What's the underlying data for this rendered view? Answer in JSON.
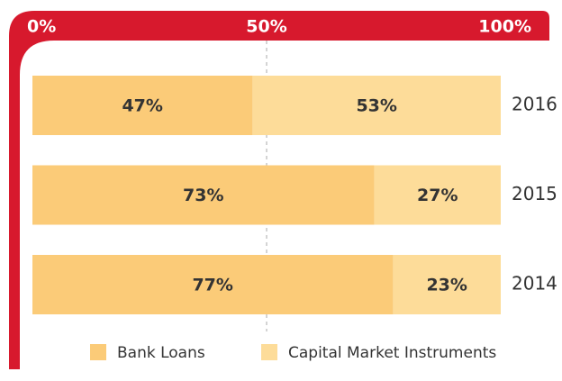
{
  "chart_data": {
    "type": "stacked-bar-horizontal",
    "categories": [
      "2016",
      "2015",
      "2014"
    ],
    "series": [
      {
        "name": "Bank Loans",
        "color": "#fbcb78",
        "values": [
          47,
          73,
          77
        ],
        "value_labels": [
          "47%",
          "73%",
          "77%"
        ]
      },
      {
        "name": "Capital Market Instruments",
        "color": "#fddc99",
        "values": [
          53,
          27,
          23
        ],
        "value_labels": [
          "53%",
          "27%",
          "23%"
        ]
      }
    ],
    "xlim": [
      0,
      100
    ],
    "xticks": [
      {
        "value": 0,
        "label": "0%"
      },
      {
        "value": 50,
        "label": "50%"
      },
      {
        "value": 100,
        "label": "100%"
      }
    ],
    "grid": true,
    "frame_color": "#d7192d"
  }
}
